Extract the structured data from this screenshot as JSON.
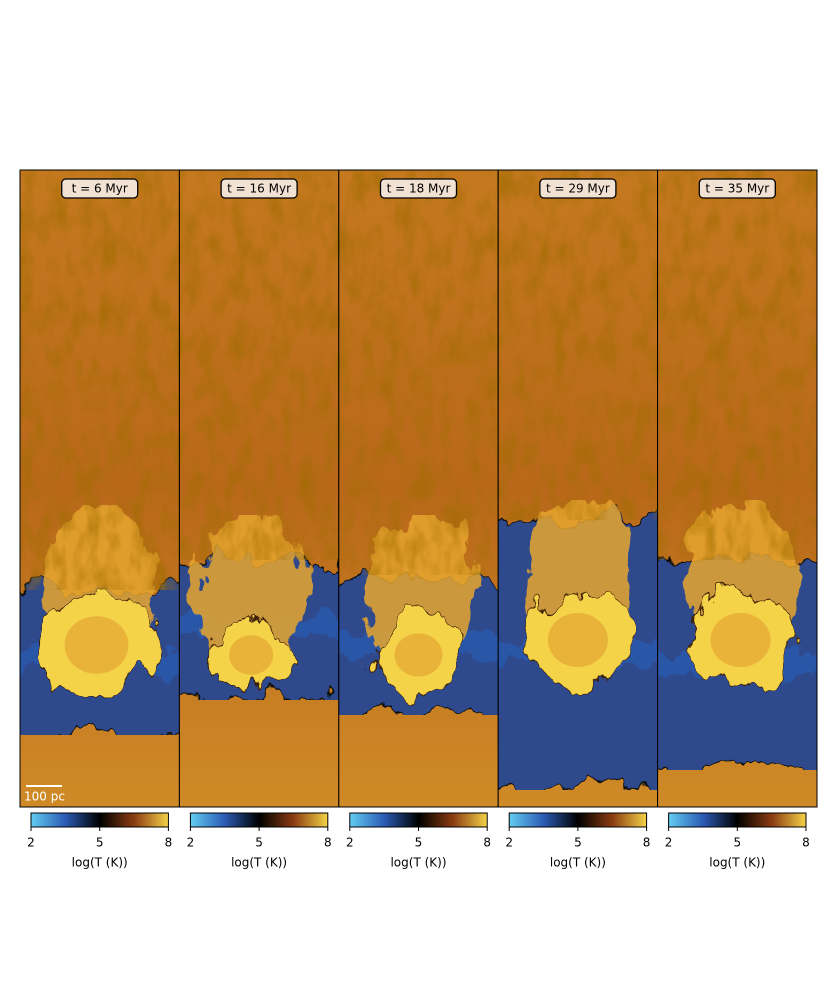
{
  "chart_data": [
    {
      "type": "image",
      "title": "t = 6 Myr",
      "scale_bar": "100 pc",
      "colorbar_label": "log(T (K))",
      "clim": [
        2,
        8
      ],
      "cticks": [
        2,
        5,
        8
      ],
      "cmap_colors": [
        "#63cdf2",
        "#2b5bb4",
        "#000000",
        "#8a3c12",
        "#f5d348"
      ]
    },
    {
      "type": "image",
      "title": "t = 16 Myr",
      "colorbar_label": "log(T (K))",
      "clim": [
        2,
        8
      ],
      "cticks": [
        2,
        5,
        8
      ],
      "cmap_colors": [
        "#63cdf2",
        "#2b5bb4",
        "#000000",
        "#8a3c12",
        "#f5d348"
      ]
    },
    {
      "type": "image",
      "title": "t = 18 Myr",
      "colorbar_label": "log(T (K))",
      "clim": [
        2,
        8
      ],
      "cticks": [
        2,
        5,
        8
      ],
      "cmap_colors": [
        "#63cdf2",
        "#2b5bb4",
        "#000000",
        "#8a3c12",
        "#f5d348"
      ]
    },
    {
      "type": "image",
      "title": "t = 29 Myr",
      "colorbar_label": "log(T (K))",
      "clim": [
        2,
        8
      ],
      "cticks": [
        2,
        5,
        8
      ],
      "cmap_colors": [
        "#63cdf2",
        "#2b5bb4",
        "#000000",
        "#8a3c12",
        "#f5d348"
      ]
    },
    {
      "type": "image",
      "title": "t = 35 Myr",
      "colorbar_label": "log(T (K))",
      "clim": [
        2,
        8
      ],
      "cticks": [
        2,
        5,
        8
      ],
      "cmap_colors": [
        "#63cdf2",
        "#2b5bb4",
        "#000000",
        "#8a3c12",
        "#f5d348"
      ]
    }
  ]
}
